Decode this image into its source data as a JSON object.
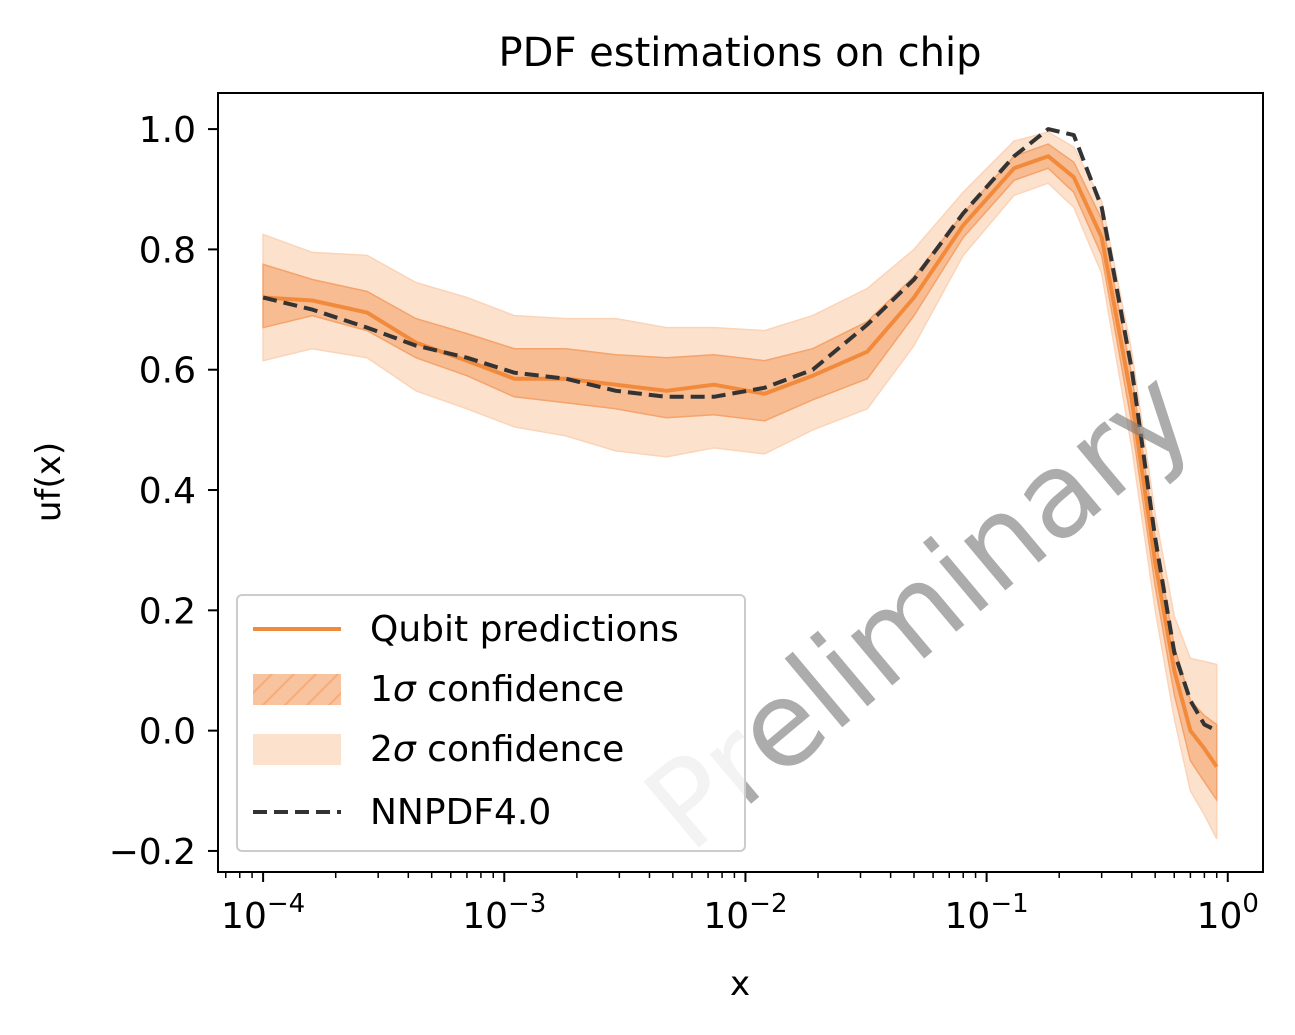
{
  "chart_data": {
    "type": "line",
    "title": "PDF estimations on chip",
    "xlabel": "x",
    "ylabel": "uf(x)",
    "xscale": "log",
    "xlim": [
      6.5e-05,
      1.4
    ],
    "ylim": [
      -0.235,
      1.06
    ],
    "xticks": [
      {
        "value": 0.0001,
        "base": "10",
        "exp": "−4"
      },
      {
        "value": 0.001,
        "base": "10",
        "exp": "−3"
      },
      {
        "value": 0.01,
        "base": "10",
        "exp": "−2"
      },
      {
        "value": 0.1,
        "base": "10",
        "exp": "−1"
      },
      {
        "value": 1,
        "base": "10",
        "exp": "0"
      }
    ],
    "yticks": [
      {
        "value": -0.2,
        "label": "−0.2"
      },
      {
        "value": 0.0,
        "label": "0.0"
      },
      {
        "value": 0.2,
        "label": "0.2"
      },
      {
        "value": 0.4,
        "label": "0.4"
      },
      {
        "value": 0.6,
        "label": "0.6"
      },
      {
        "value": 0.8,
        "label": "0.8"
      },
      {
        "value": 1.0,
        "label": "1.0"
      }
    ],
    "grid": false,
    "legend_position": "lower-left",
    "watermark": "Preliminary",
    "colors": {
      "qubit": "#f28a3c",
      "band1": "#f5a36b",
      "band2": "#fbd4b8",
      "nnpdf": "#333333"
    },
    "x": [
      0.0001,
      0.00016,
      0.00027,
      0.00043,
      0.0007,
      0.0011,
      0.0018,
      0.0029,
      0.0047,
      0.0074,
      0.012,
      0.019,
      0.032,
      0.05,
      0.08,
      0.13,
      0.18,
      0.23,
      0.3,
      0.4,
      0.5,
      0.6,
      0.7,
      0.8,
      0.9
    ],
    "series": [
      {
        "name": "Qubit predictions",
        "y": [
          0.72,
          0.715,
          0.695,
          0.645,
          0.615,
          0.585,
          0.585,
          0.575,
          0.565,
          0.575,
          0.56,
          0.59,
          0.63,
          0.72,
          0.84,
          0.935,
          0.955,
          0.92,
          0.82,
          0.55,
          0.28,
          0.1,
          0.0,
          -0.03,
          -0.06
        ],
        "band1_lower": [
          0.67,
          0.69,
          0.665,
          0.62,
          0.59,
          0.555,
          0.545,
          0.535,
          0.52,
          0.525,
          0.515,
          0.55,
          0.585,
          0.69,
          0.82,
          0.915,
          0.935,
          0.895,
          0.79,
          0.51,
          0.24,
          0.06,
          -0.05,
          -0.085,
          -0.115
        ],
        "band1_upper": [
          0.775,
          0.75,
          0.73,
          0.685,
          0.66,
          0.635,
          0.635,
          0.625,
          0.62,
          0.625,
          0.615,
          0.635,
          0.68,
          0.755,
          0.86,
          0.955,
          0.975,
          0.945,
          0.85,
          0.59,
          0.32,
          0.14,
          0.05,
          0.025,
          0.01
        ],
        "band2_lower": [
          0.615,
          0.635,
          0.62,
          0.565,
          0.535,
          0.505,
          0.49,
          0.465,
          0.455,
          0.47,
          0.46,
          0.5,
          0.535,
          0.64,
          0.79,
          0.89,
          0.91,
          0.87,
          0.76,
          0.47,
          0.2,
          0.02,
          -0.1,
          -0.14,
          -0.18
        ],
        "band2_upper": [
          0.825,
          0.795,
          0.79,
          0.745,
          0.72,
          0.69,
          0.685,
          0.685,
          0.67,
          0.67,
          0.665,
          0.69,
          0.735,
          0.8,
          0.895,
          0.98,
          0.995,
          0.97,
          0.88,
          0.63,
          0.36,
          0.19,
          0.12,
          0.115,
          0.11
        ]
      },
      {
        "name": "NNPDF4.0",
        "y": [
          0.72,
          0.7,
          0.67,
          0.64,
          0.62,
          0.595,
          0.585,
          0.565,
          0.555,
          0.555,
          0.57,
          0.6,
          0.675,
          0.75,
          0.86,
          0.955,
          1.0,
          0.99,
          0.87,
          0.6,
          0.32,
          0.13,
          0.05,
          0.01,
          0.0
        ]
      }
    ],
    "legend": [
      {
        "key": "qubit",
        "label": "Qubit predictions",
        "style": "line"
      },
      {
        "key": "band1",
        "label_pre": "1",
        "label_sym": "σ",
        "label_post": " confidence",
        "style": "hatched"
      },
      {
        "key": "band2",
        "label_pre": "2",
        "label_sym": "σ",
        "label_post": " confidence",
        "style": "patch"
      },
      {
        "key": "nnpdf",
        "label": "NNPDF4.0",
        "style": "dashed"
      }
    ]
  }
}
